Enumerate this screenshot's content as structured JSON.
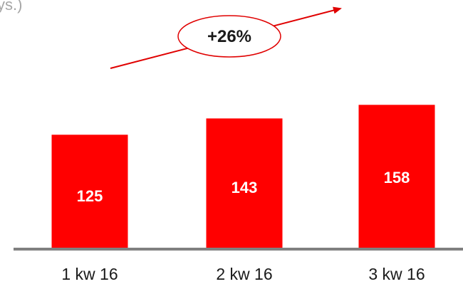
{
  "header_fragment": "ys.)",
  "chart_data": {
    "type": "bar",
    "categories": [
      "1 kw 16",
      "2 kw 16",
      "3 kw 16"
    ],
    "values": [
      125,
      143,
      158
    ],
    "value_labels": [
      "125",
      "143",
      "158"
    ],
    "title": "",
    "xlabel": "",
    "ylabel": "",
    "ylim": [
      0,
      175
    ],
    "grid": false,
    "legend": "none",
    "annotation": "+26%"
  },
  "colors": {
    "bar": "#ff0000",
    "baseline": "#808080",
    "arrow": "#e00000",
    "header_text": "#a6a6a6"
  }
}
